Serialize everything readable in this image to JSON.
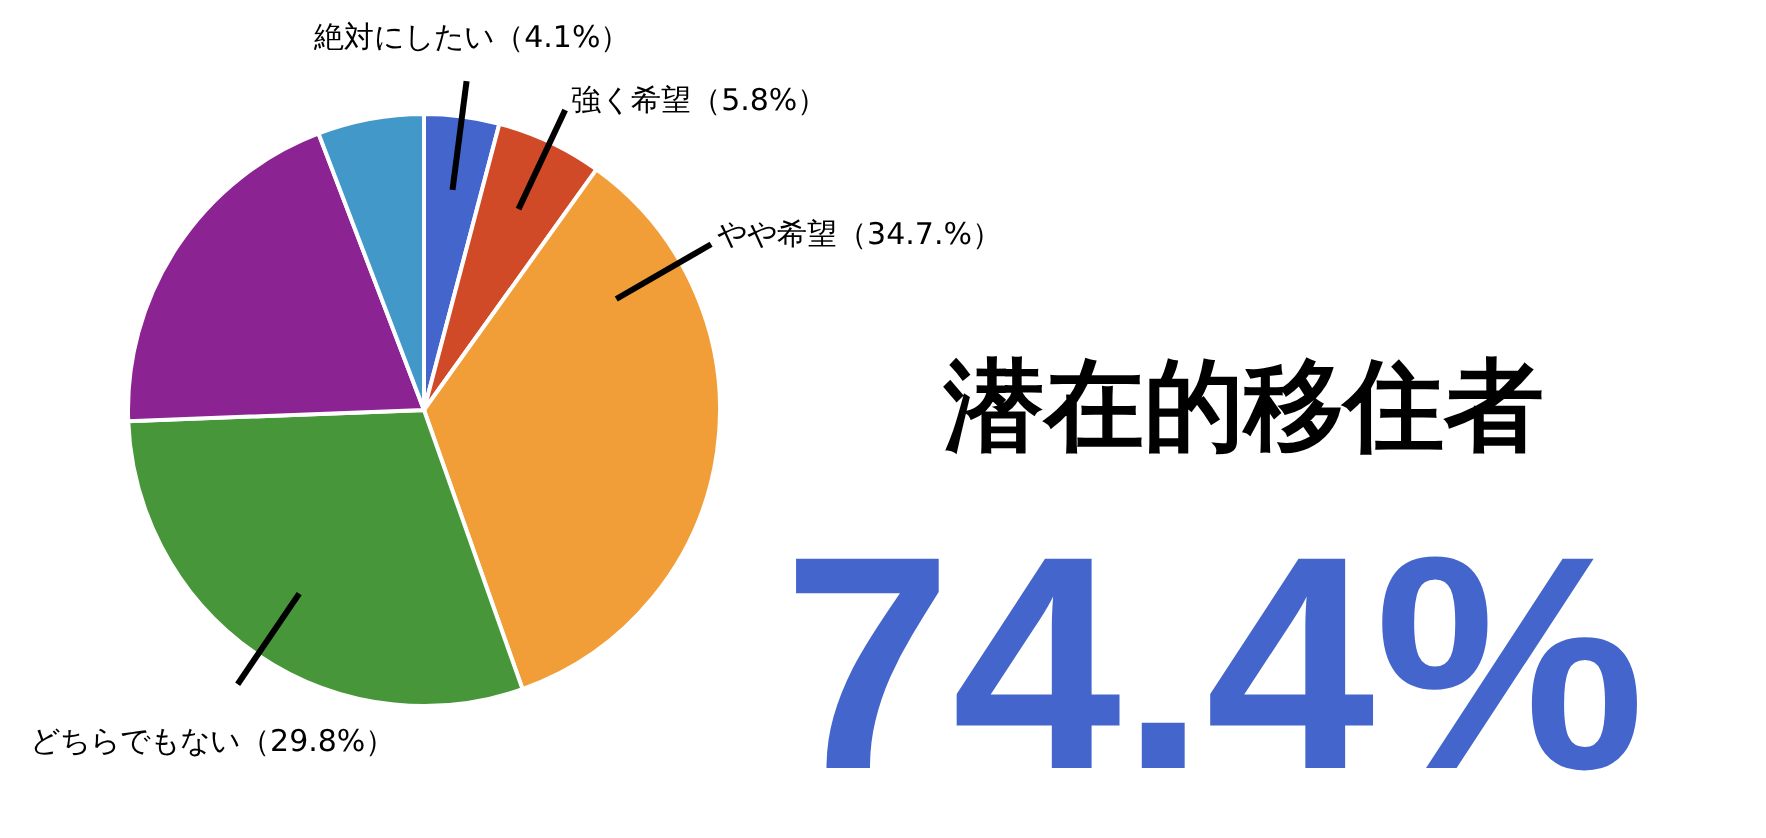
{
  "chart_data": {
    "type": "pie",
    "categories": [
      "絶対にしたい",
      "強く希望",
      "やや希望",
      "どちらでもない",
      null,
      null
    ],
    "values": [
      4.1,
      5.8,
      34.7,
      29.8,
      19.8,
      5.8
    ],
    "value_labels": [
      "（4.1%）",
      "（5.8%）",
      "（34.7.%）",
      "（29.8%）",
      null,
      null
    ],
    "colors": [
      "#4466cc",
      "#d04a28",
      "#f29e38",
      "#48963a",
      "#8c2393",
      "#4298c8"
    ],
    "annotations": [
      "潜在的移住者",
      "74.4%"
    ]
  }
}
